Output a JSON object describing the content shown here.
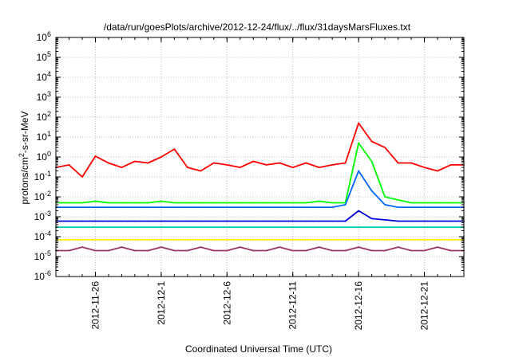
{
  "chart_data": {
    "type": "line",
    "title": "/data/run/goesPlots/archive/2012-12-24/flux/../flux/31daysMarsFluxes.txt",
    "xlabel": "Coordinated Universal Time (UTC)",
    "ylabel": "protons/cm²-s-sr-MeV",
    "ylabel_parts": {
      "pre": "protons/cm",
      "sup": "2",
      "post": "-s-sr-MeV"
    },
    "yscale": "log",
    "ylim": [
      1e-06,
      1000000.0
    ],
    "xlim": [
      "2012-11-23",
      "2012-12-24"
    ],
    "grid": true,
    "x_ticks": [
      "2012-11-26",
      "2012-12-1",
      "2012-12-6",
      "2012-12-11",
      "2012-12-16",
      "2012-12-21"
    ],
    "y_ticks": [
      {
        "base": "10",
        "exp": "-6"
      },
      {
        "base": "10",
        "exp": "-5"
      },
      {
        "base": "10",
        "exp": "-4"
      },
      {
        "base": "10",
        "exp": "-3"
      },
      {
        "base": "10",
        "exp": "-2"
      },
      {
        "base": "10",
        "exp": "-1"
      },
      {
        "base": "10",
        "exp": "0"
      },
      {
        "base": "10",
        "exp": "1"
      },
      {
        "base": "10",
        "exp": "2"
      },
      {
        "base": "10",
        "exp": "3"
      },
      {
        "base": "10",
        "exp": "4"
      },
      {
        "base": "10",
        "exp": "5"
      },
      {
        "base": "10",
        "exp": "6"
      }
    ],
    "x": [
      "2012-11-23",
      "2012-11-24",
      "2012-11-25",
      "2012-11-26",
      "2012-11-27",
      "2012-11-28",
      "2012-11-29",
      "2012-11-30",
      "2012-12-01",
      "2012-12-02",
      "2012-12-03",
      "2012-12-04",
      "2012-12-05",
      "2012-12-06",
      "2012-12-07",
      "2012-12-08",
      "2012-12-09",
      "2012-12-10",
      "2012-12-11",
      "2012-12-12",
      "2012-12-13",
      "2012-12-14",
      "2012-12-15",
      "2012-12-16",
      "2012-12-17",
      "2012-12-18",
      "2012-12-19",
      "2012-12-20",
      "2012-12-21",
      "2012-12-22",
      "2012-12-23",
      "2012-12-24"
    ],
    "series": [
      {
        "color": "#ff0000",
        "values": [
          0.3,
          0.4,
          0.1,
          1.1,
          0.5,
          0.3,
          0.6,
          0.5,
          1.0,
          2.5,
          0.3,
          0.2,
          0.5,
          0.4,
          0.3,
          0.6,
          0.4,
          0.5,
          0.3,
          0.5,
          0.3,
          0.4,
          0.5,
          50,
          6,
          3,
          0.5,
          0.5,
          0.3,
          0.2,
          0.4,
          0.4
        ]
      },
      {
        "color": "#00ff00",
        "values": [
          0.005,
          0.005,
          0.005,
          0.006,
          0.005,
          0.005,
          0.005,
          0.005,
          0.006,
          0.005,
          0.005,
          0.005,
          0.005,
          0.005,
          0.005,
          0.005,
          0.005,
          0.005,
          0.005,
          0.005,
          0.006,
          0.005,
          0.005,
          5,
          0.6,
          0.01,
          0.007,
          0.005,
          0.005,
          0.005,
          0.005,
          0.005
        ]
      },
      {
        "color": "#0066ff",
        "values": [
          0.003,
          0.003,
          0.003,
          0.003,
          0.003,
          0.003,
          0.003,
          0.003,
          0.003,
          0.003,
          0.003,
          0.003,
          0.003,
          0.003,
          0.003,
          0.003,
          0.003,
          0.003,
          0.003,
          0.003,
          0.003,
          0.003,
          0.004,
          0.2,
          0.02,
          0.004,
          0.003,
          0.003,
          0.003,
          0.003,
          0.003,
          0.003
        ]
      },
      {
        "color": "#0000dd",
        "values": [
          0.0006,
          0.0006,
          0.0006,
          0.0006,
          0.0006,
          0.0006,
          0.0006,
          0.0006,
          0.0006,
          0.0006,
          0.0006,
          0.0006,
          0.0006,
          0.0006,
          0.0006,
          0.0006,
          0.0006,
          0.0006,
          0.0006,
          0.0006,
          0.0006,
          0.0006,
          0.0006,
          0.002,
          0.0008,
          0.0007,
          0.0006,
          0.0006,
          0.0006,
          0.0006,
          0.0006,
          0.0006
        ]
      },
      {
        "color": "#00ccaa",
        "values": [
          0.0003,
          0.0003,
          0.0003,
          0.0003,
          0.0003,
          0.0003,
          0.0003,
          0.0003,
          0.0003,
          0.0003,
          0.0003,
          0.0003,
          0.0003,
          0.0003,
          0.0003,
          0.0003,
          0.0003,
          0.0003,
          0.0003,
          0.0003,
          0.0003,
          0.0003,
          0.0003,
          0.0003,
          0.0003,
          0.0003,
          0.0003,
          0.0003,
          0.0003,
          0.0003,
          0.0003,
          0.0003
        ]
      },
      {
        "color": "#ffee00",
        "values": [
          7e-05,
          7e-05,
          7e-05,
          7e-05,
          7e-05,
          7e-05,
          7e-05,
          7e-05,
          7e-05,
          7e-05,
          7e-05,
          7e-05,
          7e-05,
          7e-05,
          7e-05,
          7e-05,
          7e-05,
          7e-05,
          7e-05,
          7e-05,
          7e-05,
          7e-05,
          7e-05,
          7e-05,
          7e-05,
          7e-05,
          7e-05,
          7e-05,
          7e-05,
          7e-05,
          7e-05,
          7e-05
        ]
      },
      {
        "color": "#993366",
        "values": [
          2e-05,
          2e-05,
          3e-05,
          2e-05,
          2e-05,
          3e-05,
          2e-05,
          2e-05,
          3e-05,
          2e-05,
          2e-05,
          3e-05,
          2e-05,
          2e-05,
          3e-05,
          2e-05,
          2e-05,
          3e-05,
          2e-05,
          2e-05,
          3e-05,
          2e-05,
          2e-05,
          3e-05,
          2e-05,
          2e-05,
          3e-05,
          2e-05,
          2e-05,
          3e-05,
          2e-05,
          2e-05
        ]
      }
    ]
  }
}
